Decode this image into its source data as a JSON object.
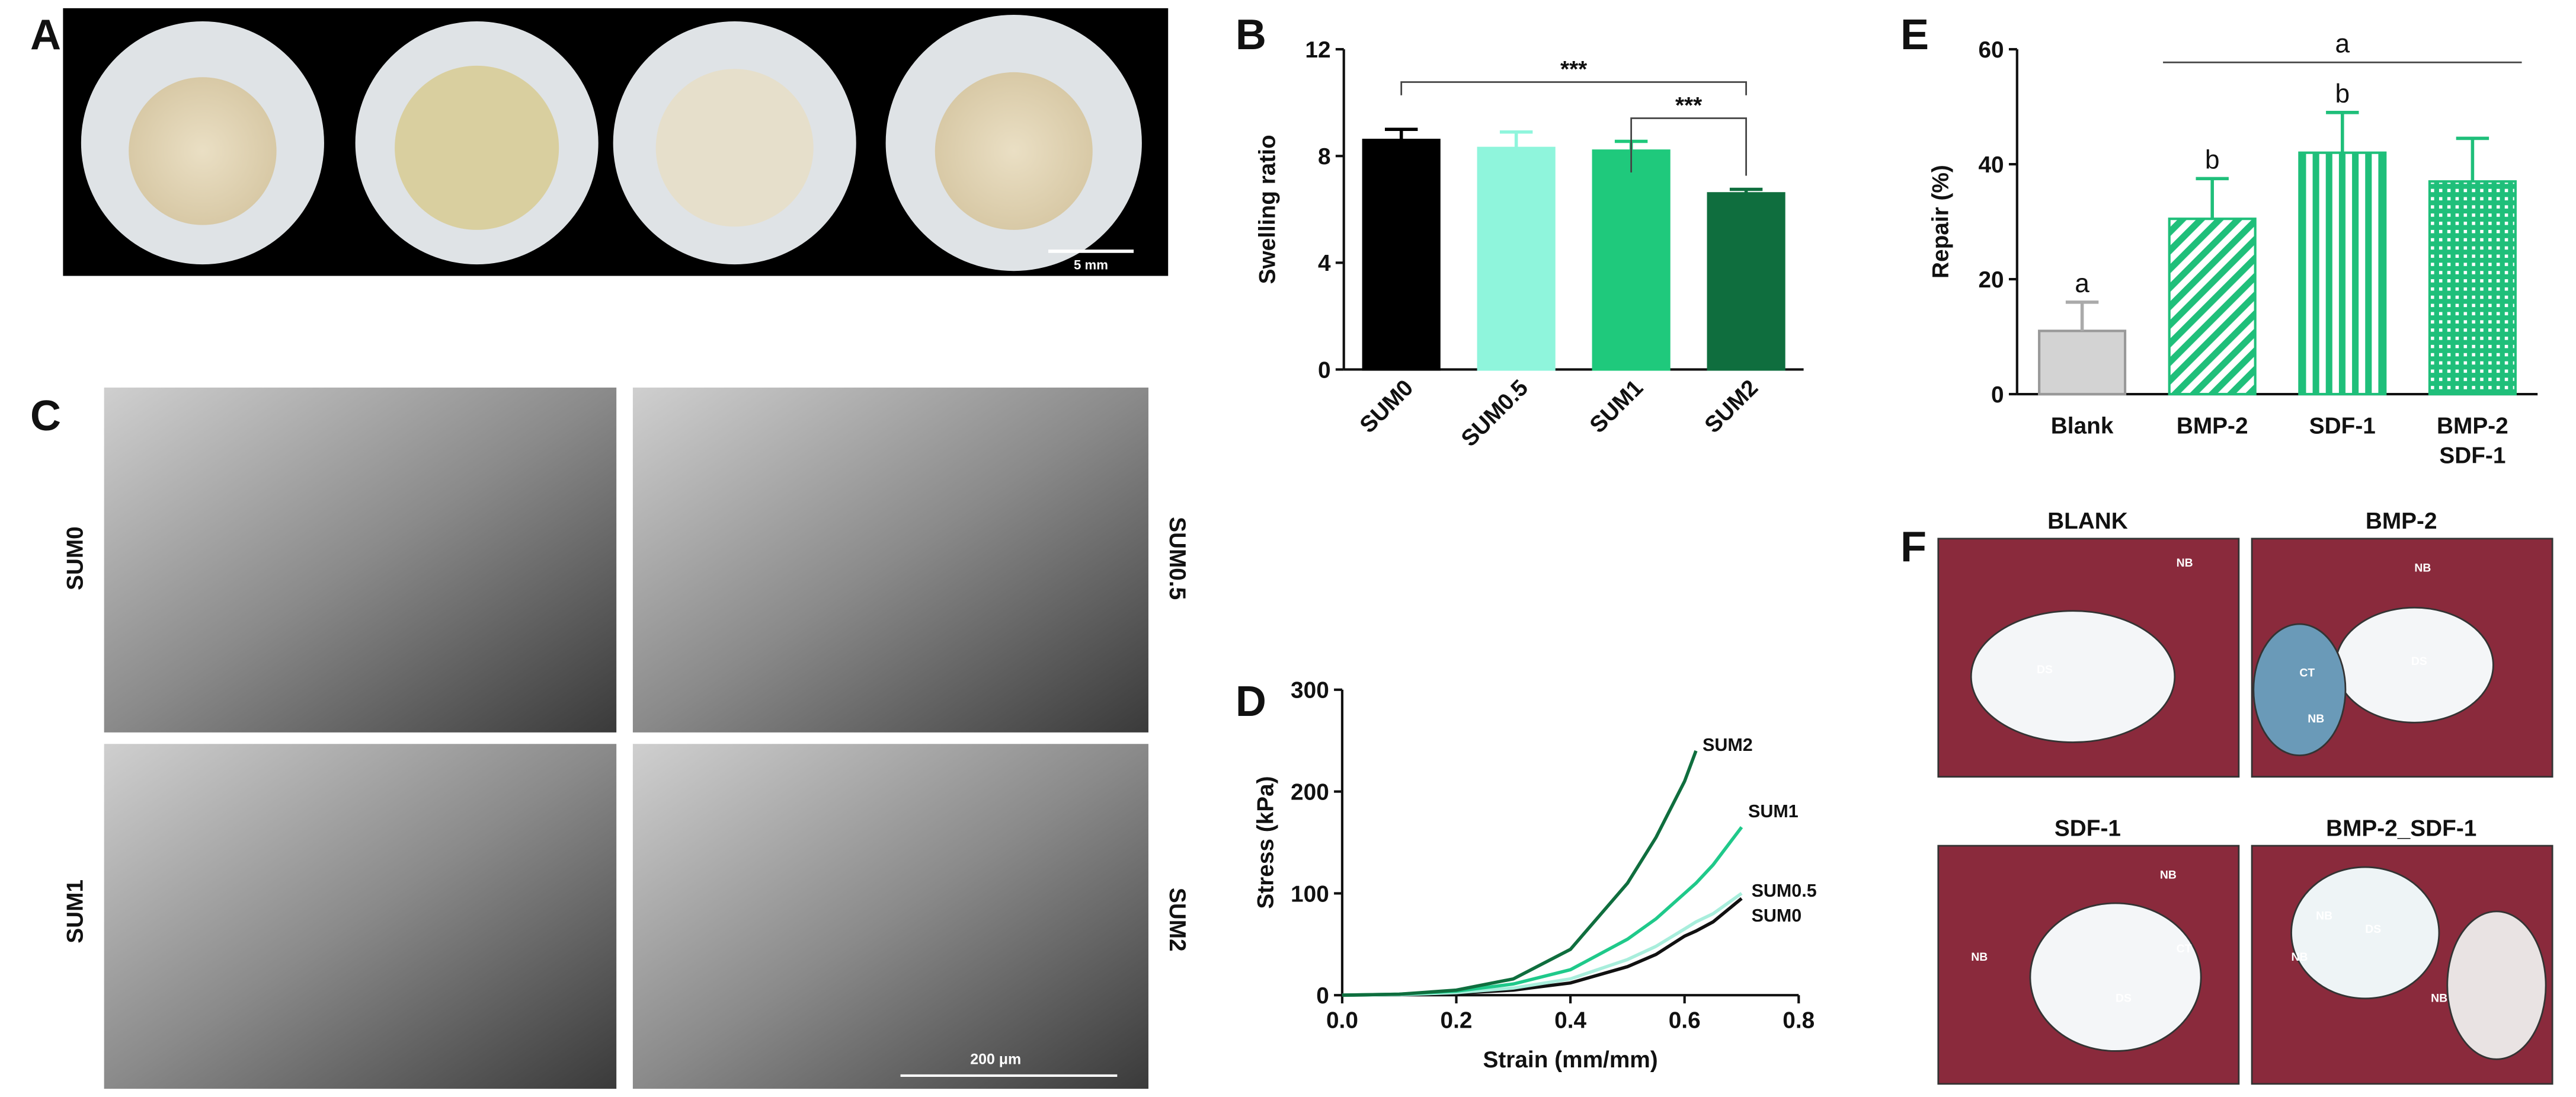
{
  "panel_labels": [
    "A",
    "B",
    "C",
    "D",
    "E",
    "F"
  ],
  "photo_a": {
    "scale_bar": "5 mm"
  },
  "sem": {
    "labels": [
      "SUM0",
      "SUM0.5",
      "SUM1",
      "SUM2"
    ],
    "scale_bar": "200 μm"
  },
  "histology": {
    "titles": [
      "BLANK",
      "BMP-2",
      "SDF-1",
      "BMP-2_SDF-1"
    ],
    "labels": [
      [
        "NB",
        "DS"
      ],
      [
        "NB",
        "CT",
        "DS",
        "NB"
      ],
      [
        "NB",
        "NB",
        "DS",
        "CT"
      ],
      [
        "NB",
        "DS",
        "NB",
        "NB"
      ]
    ]
  },
  "chart_data": [
    {
      "type": "bar",
      "y_label": "Swelling ratio",
      "categories": [
        "SUM0",
        "SUM0.5",
        "SUM1",
        "SUM2"
      ],
      "values": [
        8.6,
        8.3,
        8.2,
        6.6
      ],
      "errors": [
        0.4,
        0.6,
        0.35,
        0.15
      ],
      "colors": [
        "#000000",
        "#8ff5dc",
        "#1fc97c",
        "#0f6e3e"
      ],
      "ylim": [
        0,
        12
      ],
      "yticks": [
        0,
        4,
        8,
        12
      ],
      "annotations": [
        "***",
        "***"
      ]
    },
    {
      "type": "line",
      "x_label": "Strain (mm/mm)",
      "y_label": "Stress (kPa)",
      "x": [
        0,
        0.1,
        0.2,
        0.3,
        0.4,
        0.5,
        0.55,
        0.6,
        0.62,
        0.65,
        0.7
      ],
      "series": [
        {
          "name": "SUM0",
          "color": "#111111",
          "values": [
            0,
            0.5,
            2,
            5,
            12,
            28,
            40,
            58,
            63,
            72,
            95
          ]
        },
        {
          "name": "SUM0.5",
          "color": "#a8eedc",
          "values": [
            0,
            0.5,
            2.5,
            7,
            16,
            35,
            48,
            65,
            72,
            80,
            100
          ]
        },
        {
          "name": "SUM1",
          "color": "#1fc98a",
          "values": [
            0,
            1,
            4,
            11,
            25,
            55,
            75,
            100,
            110,
            128,
            165
          ]
        },
        {
          "name": "SUM2",
          "color": "#0f6e3e",
          "values": [
            0,
            1,
            5,
            16,
            45,
            110,
            155,
            210,
            240,
            null,
            null
          ]
        }
      ],
      "xlim": [
        0,
        0.8
      ],
      "xticks": [
        {
          "value": 0,
          "label": "0.0"
        },
        0.2,
        0.4,
        0.6,
        0.8
      ],
      "ylim": [
        0,
        300
      ],
      "yticks": [
        0,
        100,
        200,
        300
      ]
    },
    {
      "type": "bar",
      "y_label": "Repair (%)",
      "categories": [
        "Blank",
        "BMP-2",
        "SDF-1",
        "BMP-2\nSDF-1"
      ],
      "values": [
        11,
        30.5,
        42,
        37
      ],
      "errors": [
        5,
        7,
        7,
        7.5
      ],
      "colors": [
        "#d3d3d3",
        "#1fbf7a",
        "#1fbf7a",
        "#1fbf7a"
      ],
      "patterns": [
        "solid",
        "diagonal",
        "vertical",
        "dots"
      ],
      "ylim": [
        0,
        60
      ],
      "yticks": [
        0,
        20,
        40,
        60
      ],
      "bar_letters": [
        "a",
        "b",
        "b"
      ],
      "bracket_label": "a"
    }
  ]
}
